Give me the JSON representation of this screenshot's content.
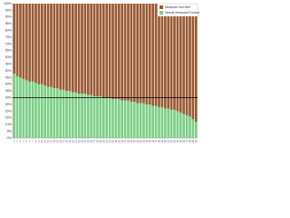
{
  "chart_data": {
    "type": "stacked_bar",
    "categories": [
      "1",
      "2",
      "3",
      "4",
      "5",
      "6",
      "7",
      "8",
      "9",
      "10",
      "11",
      "12",
      "13",
      "14",
      "15",
      "16",
      "17",
      "18",
      "19",
      "20",
      "21",
      "22",
      "23",
      "24",
      "25",
      "26",
      "27",
      "28",
      "29",
      "30",
      "31",
      "32",
      "33",
      "34",
      "35",
      "36",
      "37",
      "38",
      "39",
      "40",
      "41",
      "42",
      "43",
      "44",
      "45",
      "46",
      "47",
      "48",
      "49",
      "50",
      "51",
      "52",
      "53",
      "54",
      "55",
      "56",
      "57",
      "58",
      "59",
      "60"
    ],
    "series": [
      {
        "name": "Needs Measure/Control",
        "color": "#7ccf86",
        "values": [
          48,
          46,
          45,
          44,
          43,
          42,
          42,
          41,
          40,
          40,
          39,
          38,
          38,
          37,
          37,
          36,
          36,
          35,
          35,
          34,
          34,
          33,
          33,
          33,
          32,
          32,
          31,
          31,
          31,
          30,
          30,
          30,
          29,
          29,
          29,
          28,
          28,
          28,
          27,
          27,
          26,
          26,
          26,
          25,
          25,
          24,
          24,
          23,
          23,
          22,
          22,
          21,
          21,
          20,
          19,
          18,
          17,
          16,
          14,
          12
        ]
      },
      {
        "name": "Measure Not Met",
        "color": "#9a5a33",
        "values": [
          52,
          54,
          55,
          56,
          57,
          58,
          58,
          59,
          60,
          60,
          61,
          62,
          62,
          63,
          63,
          64,
          64,
          65,
          65,
          66,
          66,
          67,
          67,
          67,
          68,
          68,
          69,
          69,
          69,
          70,
          70,
          70,
          71,
          71,
          71,
          72,
          72,
          72,
          73,
          73,
          74,
          74,
          74,
          75,
          75,
          76,
          76,
          77,
          77,
          78,
          78,
          79,
          79,
          80,
          81,
          82,
          83,
          84,
          86,
          88
        ]
      }
    ],
    "reference_line": 30,
    "ylim": [
      0,
      100
    ],
    "yticks": [
      {
        "value": 0,
        "label": "0%"
      },
      {
        "value": 5,
        "label": "5%"
      },
      {
        "value": 10,
        "label": "10%"
      },
      {
        "value": 15,
        "label": "15%"
      },
      {
        "value": 20,
        "label": "20%"
      },
      {
        "value": 25,
        "label": "25%"
      },
      {
        "value": 30,
        "label": "30%"
      },
      {
        "value": 35,
        "label": "35%"
      },
      {
        "value": 40,
        "label": "40%"
      },
      {
        "value": 45,
        "label": "45%"
      },
      {
        "value": 50,
        "label": "50%"
      },
      {
        "value": 55,
        "label": "55%"
      },
      {
        "value": 60,
        "label": "60%"
      },
      {
        "value": 65,
        "label": "65%"
      },
      {
        "value": 70,
        "label": "70%"
      },
      {
        "value": 75,
        "label": "75%"
      },
      {
        "value": 80,
        "label": "80%"
      },
      {
        "value": 85,
        "label": "85%"
      },
      {
        "value": 90,
        "label": "90%"
      },
      {
        "value": 95,
        "label": "95%"
      },
      {
        "value": 100,
        "label": "100%"
      }
    ],
    "legend": "top-right"
  }
}
